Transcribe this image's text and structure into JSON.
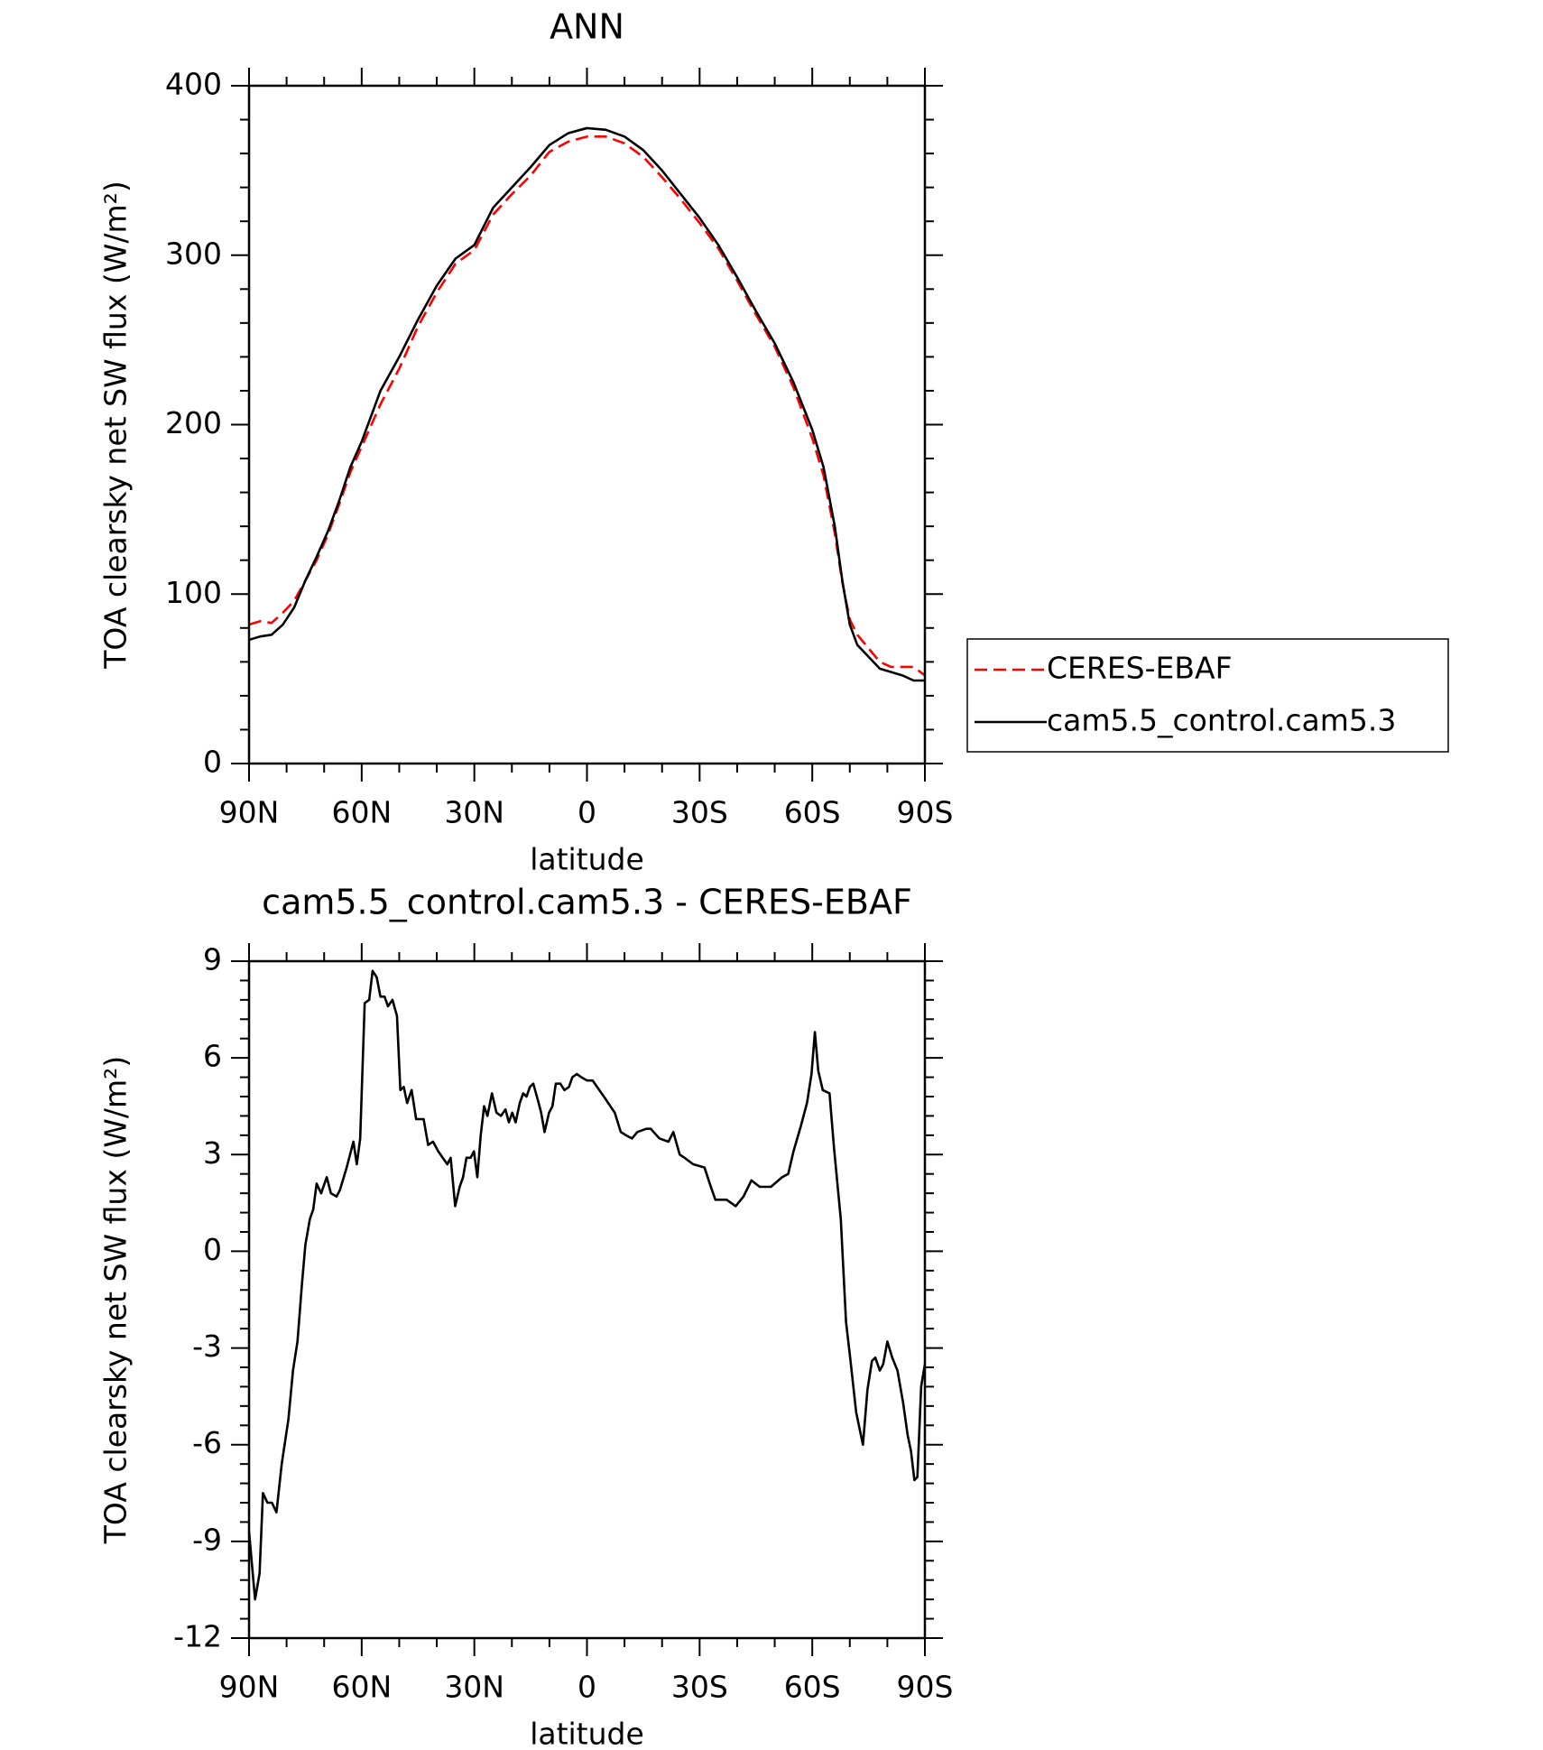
{
  "chart_data": [
    {
      "type": "line",
      "title": "ANN",
      "xlabel": "latitude",
      "ylabel": "TOA clearsky net SW flux (W/m²)",
      "xlim": [
        90,
        -90
      ],
      "xticks": [
        {
          "value": 90,
          "label": "90N"
        },
        {
          "value": 60,
          "label": "60N"
        },
        {
          "value": 30,
          "label": "30N"
        },
        0,
        {
          "value": -30,
          "label": "30S"
        },
        {
          "value": -60,
          "label": "60S"
        },
        {
          "value": -90,
          "label": "90S"
        }
      ],
      "ylim": [
        0,
        400
      ],
      "yticks": [
        0,
        100,
        200,
        300,
        400
      ],
      "legend": "outside-right",
      "x": [
        90,
        87,
        84,
        81,
        78,
        75,
        72,
        69,
        66,
        63,
        60,
        55,
        50,
        45,
        40,
        35,
        30,
        25,
        20,
        15,
        10,
        5,
        0,
        -5,
        -10,
        -15,
        -20,
        -25,
        -30,
        -35,
        -40,
        -45,
        -50,
        -55,
        -60,
        -63,
        -66,
        -68,
        -70,
        -72,
        -75,
        -78,
        -81,
        -84,
        -87,
        -90
      ],
      "series": [
        {
          "name": "CERES-EBAF",
          "color": "#ff0000",
          "style": "dashed",
          "values": [
            82,
            84,
            83,
            89,
            96,
            108,
            120,
            135,
            153,
            172,
            187,
            212,
            233,
            258,
            278,
            295,
            303,
            324,
            336,
            347,
            361,
            367,
            370,
            370,
            366,
            358,
            346,
            333,
            319,
            304,
            285,
            265,
            246,
            222,
            192,
            170,
            136,
            107,
            85,
            76,
            68,
            60,
            57,
            57,
            57,
            52
          ]
        },
        {
          "name": "cam5.5_control.cam5.3",
          "color": "#000000",
          "style": "solid",
          "values": [
            73,
            75,
            76,
            82,
            92,
            108,
            122,
            137,
            155,
            175,
            190,
            220,
            240,
            262,
            282,
            298,
            306,
            328,
            340,
            352,
            365,
            372,
            375,
            374,
            370,
            362,
            350,
            336,
            322,
            306,
            287,
            267,
            248,
            225,
            197,
            175,
            140,
            108,
            82,
            70,
            63,
            56,
            54,
            52,
            49,
            49
          ]
        }
      ]
    },
    {
      "type": "line",
      "title": "cam5.5_control.cam5.3 - CERES-EBAF",
      "xlabel": "latitude",
      "ylabel": "TOA clearsky net SW flux (W/m²)",
      "xlim": [
        90,
        -90
      ],
      "xticks": [
        {
          "value": 90,
          "label": "90N"
        },
        {
          "value": 60,
          "label": "60N"
        },
        {
          "value": 30,
          "label": "30N"
        },
        0,
        {
          "value": -30,
          "label": "30S"
        },
        {
          "value": -60,
          "label": "60S"
        },
        {
          "value": -90,
          "label": "90S"
        }
      ],
      "ylim": [
        -12,
        9
      ],
      "yticks": [
        -12,
        -9,
        -6,
        -3,
        0,
        3,
        6,
        9
      ],
      "x": [
        90,
        88.4,
        87.2,
        86.3,
        85.1,
        83.9,
        82.7,
        81.3,
        79.5,
        78.3,
        77.1,
        75.9,
        75,
        73.8,
        72.9,
        72,
        70.8,
        69.3,
        68.2,
        66.7,
        65.8,
        64,
        62.2,
        61.3,
        60.4,
        59.2,
        58,
        57.1,
        56,
        55,
        53.9,
        53,
        51.8,
        50.6,
        49.7,
        48.8,
        47.9,
        46.7,
        45.5,
        43.5,
        42.3,
        41,
        39.6,
        38.4,
        37.2,
        36.3,
        35.1,
        33.9,
        33,
        32.1,
        31,
        30.1,
        29.2,
        28.3,
        27.4,
        26.5,
        25.3,
        24.1,
        22.9,
        21.7,
        20.8,
        19.9,
        19,
        17.9,
        17,
        16.1,
        15.2,
        14.3,
        13.1,
        12.2,
        11.3,
        10.1,
        9.2,
        8.3,
        7.1,
        6,
        4.8,
        3.9,
        2.7,
        1.5,
        0,
        -1.5,
        -4.5,
        -7.4,
        -9,
        -10.4,
        -12,
        -13.4,
        -15.8,
        -17,
        -19.3,
        -21.7,
        -23,
        -24.7,
        -26,
        -28.3,
        -31.3,
        -32.7,
        -34.2,
        -37.2,
        -39.6,
        -41.7,
        -43.8,
        -46,
        -49,
        -52,
        -53.6,
        -55,
        -57,
        -58.6,
        -59.8,
        -60.7,
        -61.6,
        -62.8,
        -64.6,
        -65.8,
        -67.6,
        -69,
        -70,
        -71.7,
        -73.5,
        -74.7,
        -75.9,
        -76.8,
        -78,
        -78.9,
        -80,
        -81.3,
        -82.7,
        -84.2,
        -85.4,
        -86.3,
        -87.2,
        -88,
        -89,
        -90
      ],
      "series": [
        {
          "name": "cam5.5_control.cam5.3 - CERES-EBAF",
          "color": "#000000",
          "style": "solid",
          "values": [
            -8.7,
            -10.8,
            -10.0,
            -7.5,
            -7.8,
            -7.8,
            -8.1,
            -6.6,
            -5.2,
            -3.7,
            -2.8,
            -1.0,
            0.2,
            1.0,
            1.3,
            2.1,
            1.8,
            2.3,
            1.8,
            1.7,
            1.9,
            2.6,
            3.4,
            2.7,
            3.5,
            7.7,
            7.8,
            8.7,
            8.5,
            7.9,
            7.9,
            7.6,
            7.8,
            7.3,
            5.0,
            5.1,
            4.6,
            5.0,
            4.1,
            4.1,
            3.3,
            3.4,
            3.1,
            2.9,
            2.7,
            2.9,
            1.4,
            2.0,
            2.3,
            2.9,
            2.9,
            3.1,
            2.3,
            3.6,
            4.5,
            4.2,
            4.9,
            4.3,
            4.2,
            4.4,
            4.0,
            4.3,
            4.0,
            4.6,
            4.9,
            4.8,
            5.1,
            5.2,
            4.7,
            4.3,
            3.7,
            4.3,
            4.5,
            5.2,
            5.2,
            5.0,
            5.1,
            5.4,
            5.5,
            5.4,
            5.3,
            5.3,
            4.8,
            4.3,
            3.7,
            3.6,
            3.5,
            3.7,
            3.8,
            3.8,
            3.5,
            3.4,
            3.7,
            3.0,
            2.9,
            2.7,
            2.6,
            2.1,
            1.6,
            1.6,
            1.4,
            1.7,
            2.2,
            2.0,
            2.0,
            2.3,
            2.4,
            3.1,
            3.9,
            4.6,
            5.5,
            6.8,
            5.6,
            5.0,
            4.9,
            3.2,
            1.0,
            -2.2,
            -3.2,
            -5.0,
            -6.0,
            -4.3,
            -3.4,
            -3.3,
            -3.7,
            -3.5,
            -2.8,
            -3.3,
            -3.7,
            -4.7,
            -5.7,
            -6.2,
            -7.1,
            -7.0,
            -4.2,
            -3.5
          ]
        }
      ]
    }
  ]
}
